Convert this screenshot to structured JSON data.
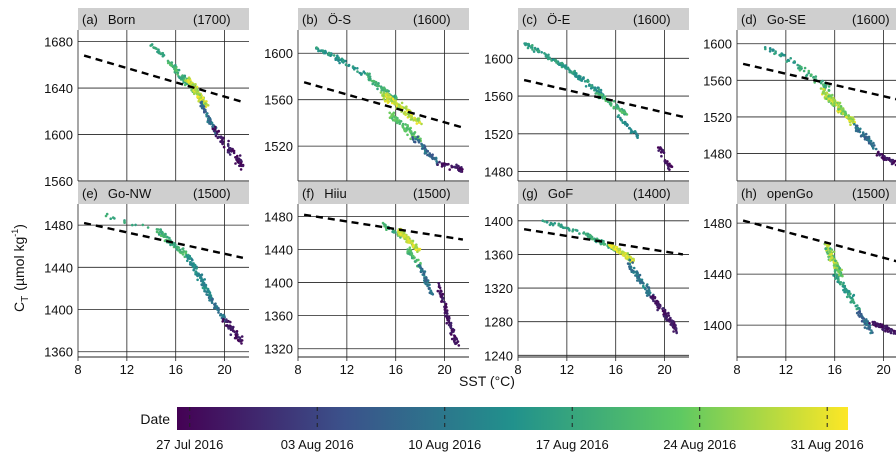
{
  "figure": {
    "y_label_main": "C",
    "y_label_sub": "T",
    "y_label_unit": "(µmol kg",
    "y_label_exp": "-1",
    "y_label_close": ")",
    "x_label": "SST (°C)",
    "colorbar_label": "Date",
    "colorbar_ticks": [
      "27 Jul 2016",
      "03 Aug 2016",
      "10 Aug 2016",
      "17 Aug 2016",
      "24 Aug 2016",
      "31 Aug 2016"
    ],
    "colormap": [
      "#440154",
      "#3b528b",
      "#21918c",
      "#5ec962",
      "#fde725"
    ]
  },
  "chart_data": [
    {
      "type": "scatter",
      "title": "(a)",
      "station": "Born",
      "ref": "(1700)",
      "xlim": [
        8,
        22
      ],
      "ylim": [
        1560,
        1690
      ],
      "yticks": [
        1560,
        1600,
        1640,
        1680
      ],
      "xticks": [
        8,
        12,
        16,
        20
      ],
      "trend": {
        "x": [
          8.5,
          21.5
        ],
        "y": [
          1668,
          1628
        ]
      },
      "clusters": [
        {
          "x0": 13.8,
          "x1": 15.5,
          "y0": 1678,
          "y1": 1664,
          "t0": 0.55,
          "t1": 0.62,
          "n": 20,
          "sx": 0.15,
          "sy": 3
        },
        {
          "x0": 15.5,
          "x1": 17.5,
          "y0": 1662,
          "y1": 1638,
          "t0": 0.55,
          "t1": 0.75,
          "n": 80,
          "sx": 0.3,
          "sy": 5
        },
        {
          "x0": 17.0,
          "x1": 18.5,
          "y0": 1648,
          "y1": 1625,
          "t0": 0.8,
          "t1": 1.0,
          "n": 120,
          "sx": 0.35,
          "sy": 4
        },
        {
          "x0": 18.0,
          "x1": 19.5,
          "y0": 1628,
          "y1": 1598,
          "t0": 0.25,
          "t1": 0.45,
          "n": 60,
          "sx": 0.25,
          "sy": 4
        },
        {
          "x0": 19.0,
          "x1": 21.5,
          "y0": 1605,
          "y1": 1572,
          "t0": 0.0,
          "t1": 0.12,
          "n": 70,
          "sx": 0.4,
          "sy": 5
        }
      ]
    },
    {
      "type": "scatter",
      "title": "(b)",
      "station": "Ö-S",
      "ref": "(1600)",
      "xlim": [
        8,
        22
      ],
      "ylim": [
        1490,
        1620
      ],
      "yticks": [
        1520,
        1560,
        1600
      ],
      "xticks": [
        8,
        12,
        16,
        20
      ],
      "trend": {
        "x": [
          8.5,
          21.5
        ],
        "y": [
          1575,
          1536
        ]
      },
      "clusters": [
        {
          "x0": 9.5,
          "x1": 13.5,
          "y0": 1605,
          "y1": 1582,
          "t0": 0.45,
          "t1": 0.6,
          "n": 60,
          "sx": 0.3,
          "sy": 3
        },
        {
          "x0": 13.5,
          "x1": 16.0,
          "y0": 1582,
          "y1": 1560,
          "t0": 0.55,
          "t1": 0.7,
          "n": 60,
          "sx": 0.3,
          "sy": 4
        },
        {
          "x0": 15.0,
          "x1": 18.0,
          "y0": 1565,
          "y1": 1540,
          "t0": 0.8,
          "t1": 1.0,
          "n": 120,
          "sx": 0.45,
          "sy": 5
        },
        {
          "x0": 15.5,
          "x1": 18.0,
          "y0": 1548,
          "y1": 1525,
          "t0": 0.65,
          "t1": 0.78,
          "n": 70,
          "sx": 0.35,
          "sy": 5
        },
        {
          "x0": 17.5,
          "x1": 19.5,
          "y0": 1528,
          "y1": 1505,
          "t0": 0.25,
          "t1": 0.45,
          "n": 50,
          "sx": 0.3,
          "sy": 4
        },
        {
          "x0": 19.5,
          "x1": 21.5,
          "y0": 1505,
          "y1": 1500,
          "t0": 0.0,
          "t1": 0.12,
          "n": 40,
          "sx": 0.35,
          "sy": 3
        }
      ]
    },
    {
      "type": "scatter",
      "title": "(c)",
      "station": "Ö-E",
      "ref": "(1600)",
      "xlim": [
        8,
        22
      ],
      "ylim": [
        1470,
        1630
      ],
      "yticks": [
        1480,
        1520,
        1560,
        1600
      ],
      "xticks": [
        8,
        12,
        16,
        20
      ],
      "trend": {
        "x": [
          8.5,
          21.5
        ],
        "y": [
          1577,
          1538
        ]
      },
      "clusters": [
        {
          "x0": 8.5,
          "x1": 12.0,
          "y0": 1616,
          "y1": 1590,
          "t0": 0.5,
          "t1": 0.62,
          "n": 60,
          "sx": 0.3,
          "sy": 3
        },
        {
          "x0": 12.0,
          "x1": 15.0,
          "y0": 1590,
          "y1": 1562,
          "t0": 0.45,
          "t1": 0.6,
          "n": 70,
          "sx": 0.3,
          "sy": 4
        },
        {
          "x0": 14.5,
          "x1": 17.0,
          "y0": 1562,
          "y1": 1540,
          "t0": 0.55,
          "t1": 0.75,
          "n": 50,
          "sx": 0.3,
          "sy": 4
        },
        {
          "x0": 16.0,
          "x1": 18.0,
          "y0": 1540,
          "y1": 1515,
          "t0": 0.4,
          "t1": 0.55,
          "n": 30,
          "sx": 0.25,
          "sy": 3
        },
        {
          "x0": 19.5,
          "x1": 20.5,
          "y0": 1508,
          "y1": 1482,
          "t0": 0.0,
          "t1": 0.1,
          "n": 30,
          "sx": 0.25,
          "sy": 4
        }
      ]
    },
    {
      "type": "scatter",
      "title": "(d)",
      "station": "Go-SE",
      "ref": "(1600)",
      "xlim": [
        8,
        22
      ],
      "ylim": [
        1450,
        1615
      ],
      "yticks": [
        1480,
        1520,
        1560,
        1600
      ],
      "xticks": [
        8,
        12,
        16,
        20
      ],
      "trend": {
        "x": [
          8.5,
          21.5
        ],
        "y": [
          1578,
          1538
        ]
      },
      "clusters": [
        {
          "x0": 10.0,
          "x1": 13.0,
          "y0": 1598,
          "y1": 1578,
          "t0": 0.45,
          "t1": 0.6,
          "n": 30,
          "sx": 0.35,
          "sy": 5
        },
        {
          "x0": 13.0,
          "x1": 15.5,
          "y0": 1575,
          "y1": 1552,
          "t0": 0.55,
          "t1": 0.7,
          "n": 40,
          "sx": 0.35,
          "sy": 5
        },
        {
          "x0": 15.0,
          "x1": 17.5,
          "y0": 1548,
          "y1": 1515,
          "t0": 0.7,
          "t1": 1.0,
          "n": 150,
          "sx": 0.4,
          "sy": 6
        },
        {
          "x0": 17.5,
          "x1": 19.5,
          "y0": 1512,
          "y1": 1485,
          "t0": 0.25,
          "t1": 0.45,
          "n": 50,
          "sx": 0.3,
          "sy": 4
        },
        {
          "x0": 19.5,
          "x1": 21.5,
          "y0": 1480,
          "y1": 1465,
          "t0": 0.0,
          "t1": 0.12,
          "n": 50,
          "sx": 0.3,
          "sy": 3
        }
      ]
    },
    {
      "type": "scatter",
      "title": "(e)",
      "station": "Go-NW",
      "ref": "(1500)",
      "xlim": [
        8,
        22
      ],
      "ylim": [
        1355,
        1500
      ],
      "yticks": [
        1360,
        1400,
        1440,
        1480
      ],
      "xticks": [
        8,
        12,
        16,
        20
      ],
      "trend": {
        "x": [
          8.5,
          21.5
        ],
        "y": [
          1482,
          1449
        ]
      },
      "clusters": [
        {
          "x0": 10.0,
          "x1": 14.0,
          "y0": 1490,
          "y1": 1475,
          "t0": 0.55,
          "t1": 0.65,
          "n": 12,
          "sx": 0.4,
          "sy": 3
        },
        {
          "x0": 14.5,
          "x1": 17.0,
          "y0": 1475,
          "y1": 1450,
          "t0": 0.55,
          "t1": 0.75,
          "n": 80,
          "sx": 0.35,
          "sy": 4
        },
        {
          "x0": 17.0,
          "x1": 19.0,
          "y0": 1450,
          "y1": 1410,
          "t0": 0.4,
          "t1": 0.55,
          "n": 90,
          "sx": 0.3,
          "sy": 5
        },
        {
          "x0": 18.8,
          "x1": 20.0,
          "y0": 1412,
          "y1": 1390,
          "t0": 0.3,
          "t1": 0.45,
          "n": 40,
          "sx": 0.2,
          "sy": 4
        },
        {
          "x0": 20.0,
          "x1": 21.5,
          "y0": 1390,
          "y1": 1368,
          "t0": 0.0,
          "t1": 0.12,
          "n": 50,
          "sx": 0.3,
          "sy": 5
        }
      ]
    },
    {
      "type": "scatter",
      "title": "(f)",
      "station": "Hiiu",
      "ref": "(1500)",
      "xlim": [
        8,
        22
      ],
      "ylim": [
        1310,
        1495
      ],
      "yticks": [
        1320,
        1360,
        1400,
        1440,
        1480
      ],
      "xticks": [
        8,
        12,
        16,
        20
      ],
      "trend": {
        "x": [
          8.5,
          21.5
        ],
        "y": [
          1482,
          1452
        ]
      },
      "clusters": [
        {
          "x0": 15.0,
          "x1": 16.5,
          "y0": 1470,
          "y1": 1455,
          "t0": 0.55,
          "t1": 0.7,
          "n": 30,
          "sx": 0.25,
          "sy": 4
        },
        {
          "x0": 16.3,
          "x1": 17.8,
          "y0": 1462,
          "y1": 1440,
          "t0": 0.8,
          "t1": 1.0,
          "n": 100,
          "sx": 0.3,
          "sy": 5
        },
        {
          "x0": 17.0,
          "x1": 18.0,
          "y0": 1440,
          "y1": 1418,
          "t0": 0.6,
          "t1": 0.75,
          "n": 40,
          "sx": 0.25,
          "sy": 5
        },
        {
          "x0": 18.0,
          "x1": 19.0,
          "y0": 1420,
          "y1": 1385,
          "t0": 0.3,
          "t1": 0.45,
          "n": 50,
          "sx": 0.2,
          "sy": 5
        },
        {
          "x0": 19.5,
          "x1": 21.0,
          "y0": 1395,
          "y1": 1325,
          "t0": 0.0,
          "t1": 0.12,
          "n": 90,
          "sx": 0.3,
          "sy": 8
        }
      ]
    },
    {
      "type": "scatter",
      "title": "(g)",
      "station": "GoF",
      "ref": "(1400)",
      "xlim": [
        8,
        22
      ],
      "ylim": [
        1238,
        1420
      ],
      "yticks": [
        1240,
        1280,
        1320,
        1360,
        1400
      ],
      "xticks": [
        8,
        12,
        16,
        20
      ],
      "trend": {
        "x": [
          8.5,
          21.5
        ],
        "y": [
          1390,
          1360
        ]
      },
      "clusters": [
        {
          "x0": 10.0,
          "x1": 13.5,
          "y0": 1400,
          "y1": 1385,
          "t0": 0.5,
          "t1": 0.62,
          "n": 30,
          "sx": 0.3,
          "sy": 3
        },
        {
          "x0": 13.5,
          "x1": 16.0,
          "y0": 1385,
          "y1": 1365,
          "t0": 0.55,
          "t1": 0.7,
          "n": 60,
          "sx": 0.3,
          "sy": 3
        },
        {
          "x0": 15.5,
          "x1": 17.5,
          "y0": 1372,
          "y1": 1352,
          "t0": 0.8,
          "t1": 1.0,
          "n": 110,
          "sx": 0.35,
          "sy": 4
        },
        {
          "x0": 17.0,
          "x1": 19.0,
          "y0": 1352,
          "y1": 1310,
          "t0": 0.3,
          "t1": 0.5,
          "n": 70,
          "sx": 0.3,
          "sy": 5
        },
        {
          "x0": 19.0,
          "x1": 21.0,
          "y0": 1310,
          "y1": 1270,
          "t0": 0.0,
          "t1": 0.12,
          "n": 90,
          "sx": 0.35,
          "sy": 6
        }
      ]
    },
    {
      "type": "scatter",
      "title": "(h)",
      "station": "openGo",
      "ref": "(1500)",
      "xlim": [
        8,
        22
      ],
      "ylim": [
        1375,
        1495
      ],
      "yticks": [
        1400,
        1440,
        1480
      ],
      "xticks": [
        8,
        12,
        16,
        20
      ],
      "trend": {
        "x": [
          8.5,
          21.5
        ],
        "y": [
          1482,
          1449
        ]
      },
      "clusters": [
        {
          "x0": 15.3,
          "x1": 16.5,
          "y0": 1462,
          "y1": 1440,
          "t0": 0.6,
          "t1": 0.95,
          "n": 110,
          "sx": 0.3,
          "sy": 5
        },
        {
          "x0": 16.0,
          "x1": 18.0,
          "y0": 1440,
          "y1": 1412,
          "t0": 0.5,
          "t1": 0.65,
          "n": 60,
          "sx": 0.25,
          "sy": 5
        },
        {
          "x0": 18.0,
          "x1": 19.0,
          "y0": 1410,
          "y1": 1395,
          "t0": 0.25,
          "t1": 0.45,
          "n": 40,
          "sx": 0.25,
          "sy": 4
        },
        {
          "x0": 19.0,
          "x1": 21.5,
          "y0": 1402,
          "y1": 1392,
          "t0": 0.0,
          "t1": 0.12,
          "n": 80,
          "sx": 0.35,
          "sy": 3
        }
      ]
    }
  ]
}
